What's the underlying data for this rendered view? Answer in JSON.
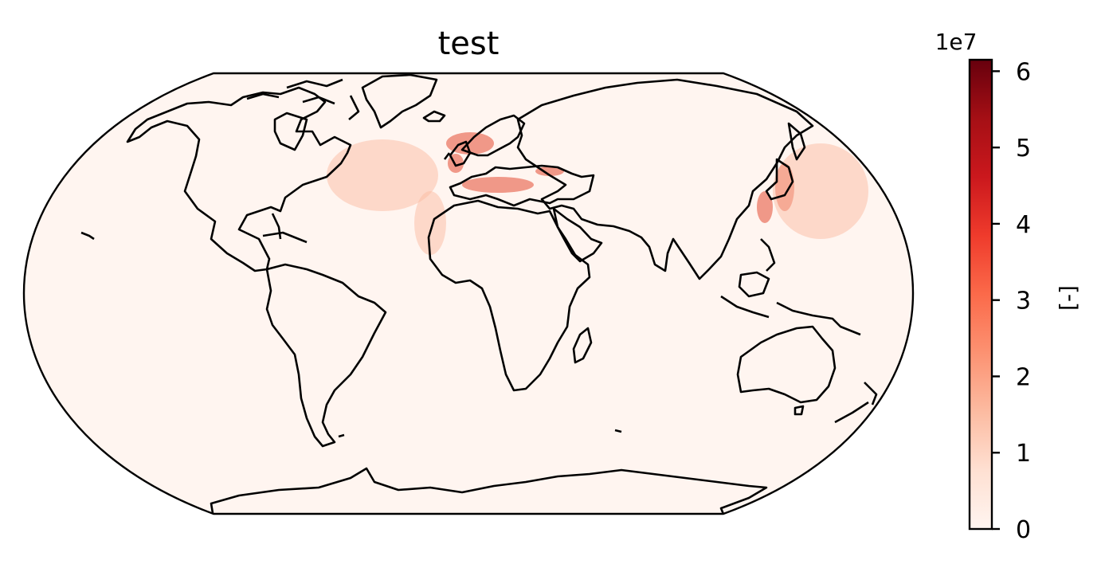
{
  "title": "test",
  "projection": "Robinson",
  "colormap": "Reds",
  "colorbar": {
    "label": "[-]",
    "offset_text": "1e7",
    "ticks": [
      "0",
      "1",
      "2",
      "3",
      "4",
      "5",
      "6"
    ],
    "tick_values": [
      0,
      1,
      2,
      3,
      4,
      5,
      6
    ],
    "range": [
      0,
      6.15
    ],
    "scale": 10000000,
    "colors": [
      "#fff5f0",
      "#fee0d2",
      "#fcbba1",
      "#fc9272",
      "#fb6a4a",
      "#ef3b2c",
      "#cb181d",
      "#a50f15",
      "#67000d"
    ]
  },
  "colors": {
    "ocean_background": "#fff5f0",
    "coastline": "#000000",
    "hotspot": "#e34a33"
  }
}
